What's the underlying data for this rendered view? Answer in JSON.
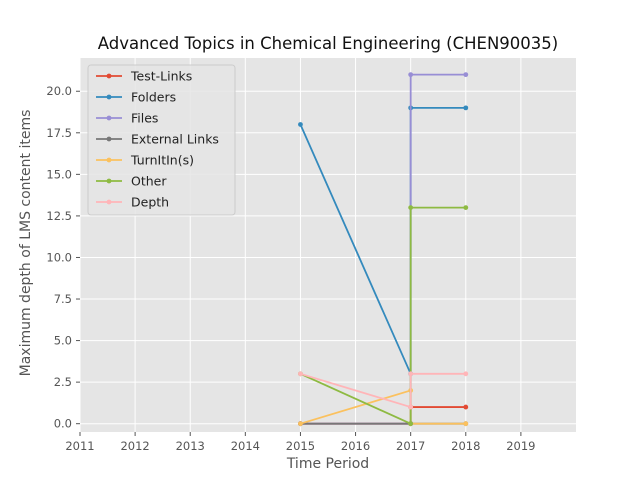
{
  "chart_data": {
    "type": "line",
    "title": "Advanced Topics in Chemical Engineering (CHEN90035)",
    "xlabel": "Time Period",
    "ylabel": "Maximum depth of LMS content items",
    "xlim": [
      2011,
      2020
    ],
    "ylim": [
      -0.5,
      22.0
    ],
    "xticks": [
      2011,
      2012,
      2013,
      2014,
      2015,
      2016,
      2017,
      2018,
      2019
    ],
    "yticks": [
      0.0,
      2.5,
      5.0,
      7.5,
      10.0,
      12.5,
      15.0,
      17.5,
      20.0
    ],
    "xtick_labels": [
      "2011",
      "2012",
      "2013",
      "2014",
      "2015",
      "2016",
      "2017",
      "2018",
      "2019"
    ],
    "ytick_labels": [
      "0.0",
      "2.5",
      "5.0",
      "7.5",
      "10.0",
      "12.5",
      "15.0",
      "17.5",
      "20.0"
    ],
    "grid": true,
    "legend_position": "upper-left",
    "series": [
      {
        "name": "Test-Links",
        "color": "#E24A33",
        "points": [
          [
            2015,
            0
          ],
          [
            2017,
            0
          ],
          [
            2017,
            1
          ],
          [
            2018,
            1
          ]
        ]
      },
      {
        "name": "Folders",
        "color": "#348ABD",
        "points": [
          [
            2015,
            18
          ],
          [
            2017,
            3
          ],
          [
            2017,
            19
          ],
          [
            2018,
            19
          ]
        ]
      },
      {
        "name": "Files",
        "color": "#988ED5",
        "points": [
          [
            2015,
            0
          ],
          [
            2017,
            0
          ],
          [
            2017,
            21
          ],
          [
            2018,
            21
          ]
        ]
      },
      {
        "name": "External Links",
        "color": "#777777",
        "points": [
          [
            2015,
            0
          ],
          [
            2017,
            0
          ],
          [
            2017,
            0
          ],
          [
            2018,
            0
          ]
        ]
      },
      {
        "name": "TurnItIn(s)",
        "color": "#FBC15E",
        "points": [
          [
            2015,
            0
          ],
          [
            2017,
            2
          ],
          [
            2017,
            0
          ],
          [
            2018,
            0
          ]
        ]
      },
      {
        "name": "Other",
        "color": "#8EBA42",
        "points": [
          [
            2015,
            3
          ],
          [
            2017,
            0
          ],
          [
            2017,
            13
          ],
          [
            2018,
            13
          ]
        ]
      },
      {
        "name": "Depth",
        "color": "#FFB5B8",
        "points": [
          [
            2015,
            3
          ],
          [
            2017,
            1
          ],
          [
            2017,
            3
          ],
          [
            2018,
            3
          ]
        ]
      }
    ]
  }
}
